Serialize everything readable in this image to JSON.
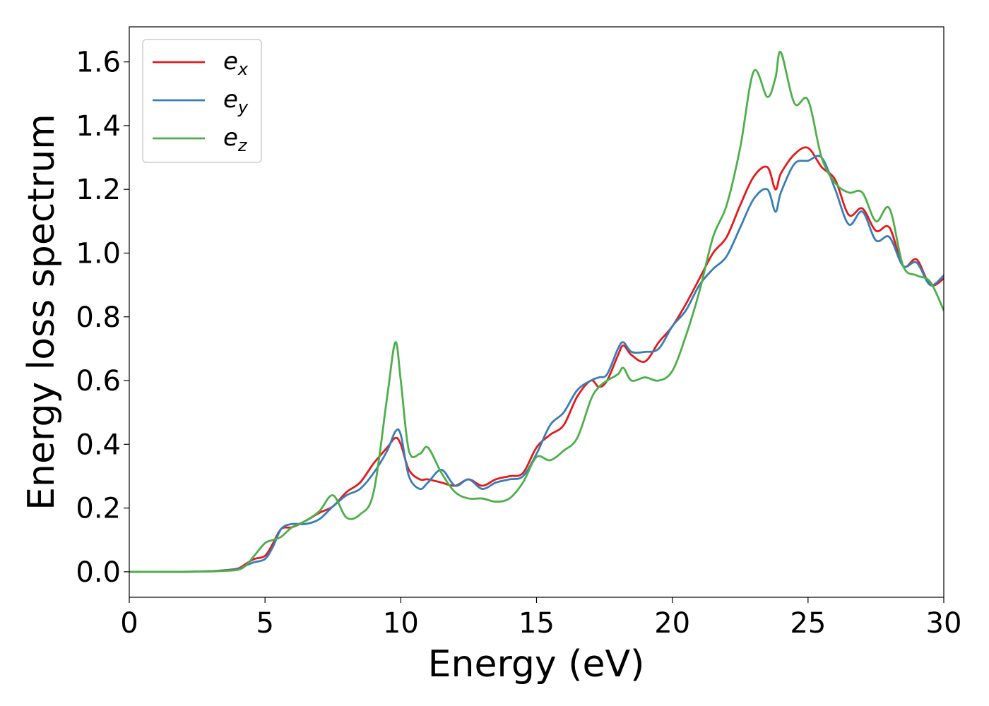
{
  "chart_data": {
    "type": "line",
    "title": "",
    "xlabel": "Energy (eV)",
    "ylabel": "Energy loss spectrum",
    "xlim": [
      0,
      30
    ],
    "ylim": [
      -0.08,
      1.71
    ],
    "xticks": [
      0,
      5,
      10,
      15,
      20,
      25,
      30
    ],
    "yticks": [
      0.0,
      0.2,
      0.4,
      0.6,
      0.8,
      1.0,
      1.2,
      1.4,
      1.6
    ],
    "grid": false,
    "legend_position": "top-left",
    "series": [
      {
        "key": "ex",
        "base": "e",
        "sub": "x",
        "color": "#e41a1c",
        "x": [
          0,
          1,
          2,
          3,
          3.5,
          4,
          4.3,
          4.6,
          5,
          5.3,
          5.6,
          6,
          6.5,
          7,
          7.5,
          8,
          8.5,
          9,
          9.5,
          9.8,
          10,
          10.3,
          10.7,
          11,
          11.5,
          12,
          12.5,
          13,
          13.5,
          14,
          14.5,
          15,
          15.5,
          16,
          16.5,
          17,
          17.3,
          17.6,
          18,
          18.2,
          18.5,
          19,
          19.5,
          20,
          20.5,
          21,
          21.5,
          22,
          22.5,
          23,
          23.5,
          23.8,
          24,
          24.5,
          25,
          25.5,
          26,
          26.5,
          27,
          27.5,
          28,
          28.5,
          29,
          29.5,
          30
        ],
        "y": [
          0,
          0,
          0,
          0.002,
          0.005,
          0.01,
          0.025,
          0.04,
          0.05,
          0.09,
          0.135,
          0.14,
          0.16,
          0.185,
          0.205,
          0.25,
          0.28,
          0.34,
          0.39,
          0.42,
          0.4,
          0.32,
          0.29,
          0.29,
          0.28,
          0.27,
          0.29,
          0.27,
          0.29,
          0.3,
          0.31,
          0.39,
          0.43,
          0.46,
          0.55,
          0.6,
          0.58,
          0.6,
          0.68,
          0.71,
          0.68,
          0.66,
          0.72,
          0.77,
          0.84,
          0.92,
          1.0,
          1.05,
          1.15,
          1.24,
          1.27,
          1.2,
          1.25,
          1.31,
          1.33,
          1.27,
          1.23,
          1.12,
          1.14,
          1.07,
          1.08,
          0.96,
          0.98,
          0.9,
          0.92
        ]
      },
      {
        "key": "ey",
        "base": "e",
        "sub": "y",
        "color": "#377eb8",
        "x": [
          0,
          1,
          2,
          3,
          3.5,
          4,
          4.3,
          4.6,
          5,
          5.3,
          5.6,
          6,
          6.5,
          7,
          7.5,
          8,
          8.5,
          9,
          9.5,
          9.8,
          10,
          10.3,
          10.7,
          11,
          11.5,
          12,
          12.5,
          13,
          13.5,
          14,
          14.5,
          15,
          15.5,
          16,
          16.5,
          17,
          17.3,
          17.6,
          18,
          18.2,
          18.5,
          19,
          19.5,
          20,
          20.5,
          21,
          21.5,
          22,
          22.5,
          23,
          23.5,
          23.8,
          24,
          24.5,
          25,
          25.5,
          26,
          26.5,
          27,
          27.5,
          28,
          28.5,
          29,
          29.5,
          30
        ],
        "y": [
          0,
          0,
          0,
          0.002,
          0.004,
          0.008,
          0.02,
          0.03,
          0.04,
          0.08,
          0.135,
          0.15,
          0.15,
          0.165,
          0.205,
          0.24,
          0.26,
          0.31,
          0.38,
          0.44,
          0.43,
          0.3,
          0.26,
          0.28,
          0.32,
          0.27,
          0.29,
          0.26,
          0.28,
          0.29,
          0.3,
          0.37,
          0.46,
          0.5,
          0.57,
          0.6,
          0.61,
          0.62,
          0.7,
          0.72,
          0.69,
          0.69,
          0.7,
          0.77,
          0.82,
          0.9,
          0.95,
          0.99,
          1.08,
          1.17,
          1.2,
          1.13,
          1.19,
          1.28,
          1.29,
          1.3,
          1.2,
          1.09,
          1.13,
          1.04,
          1.05,
          0.96,
          0.97,
          0.9,
          0.93
        ]
      },
      {
        "key": "ez",
        "base": "e",
        "sub": "z",
        "color": "#4daf4a",
        "x": [
          0,
          1,
          2,
          3,
          3.5,
          4,
          4.3,
          4.6,
          5,
          5.3,
          5.6,
          6,
          6.5,
          7,
          7.5,
          8,
          8.5,
          9,
          9.5,
          9.8,
          10,
          10.3,
          10.7,
          11,
          11.5,
          12,
          12.5,
          13,
          13.5,
          14,
          14.5,
          15,
          15.5,
          16,
          16.5,
          17,
          17.3,
          17.6,
          18,
          18.2,
          18.5,
          19,
          19.5,
          20,
          20.5,
          21,
          21.5,
          22,
          22.5,
          23,
          23.5,
          23.8,
          24,
          24.5,
          25,
          25.5,
          26,
          26.5,
          27,
          27.5,
          28,
          28.5,
          29,
          29.5,
          30
        ],
        "y": [
          0,
          0,
          0,
          0.001,
          0.003,
          0.006,
          0.02,
          0.05,
          0.09,
          0.1,
          0.11,
          0.14,
          0.16,
          0.19,
          0.24,
          0.17,
          0.18,
          0.25,
          0.55,
          0.72,
          0.6,
          0.38,
          0.37,
          0.39,
          0.31,
          0.25,
          0.23,
          0.23,
          0.22,
          0.23,
          0.28,
          0.36,
          0.35,
          0.38,
          0.42,
          0.54,
          0.58,
          0.6,
          0.62,
          0.64,
          0.6,
          0.61,
          0.6,
          0.63,
          0.74,
          0.88,
          1.05,
          1.15,
          1.33,
          1.57,
          1.49,
          1.55,
          1.63,
          1.47,
          1.48,
          1.3,
          1.22,
          1.19,
          1.19,
          1.1,
          1.14,
          0.96,
          0.93,
          0.91,
          0.82
        ]
      }
    ]
  }
}
